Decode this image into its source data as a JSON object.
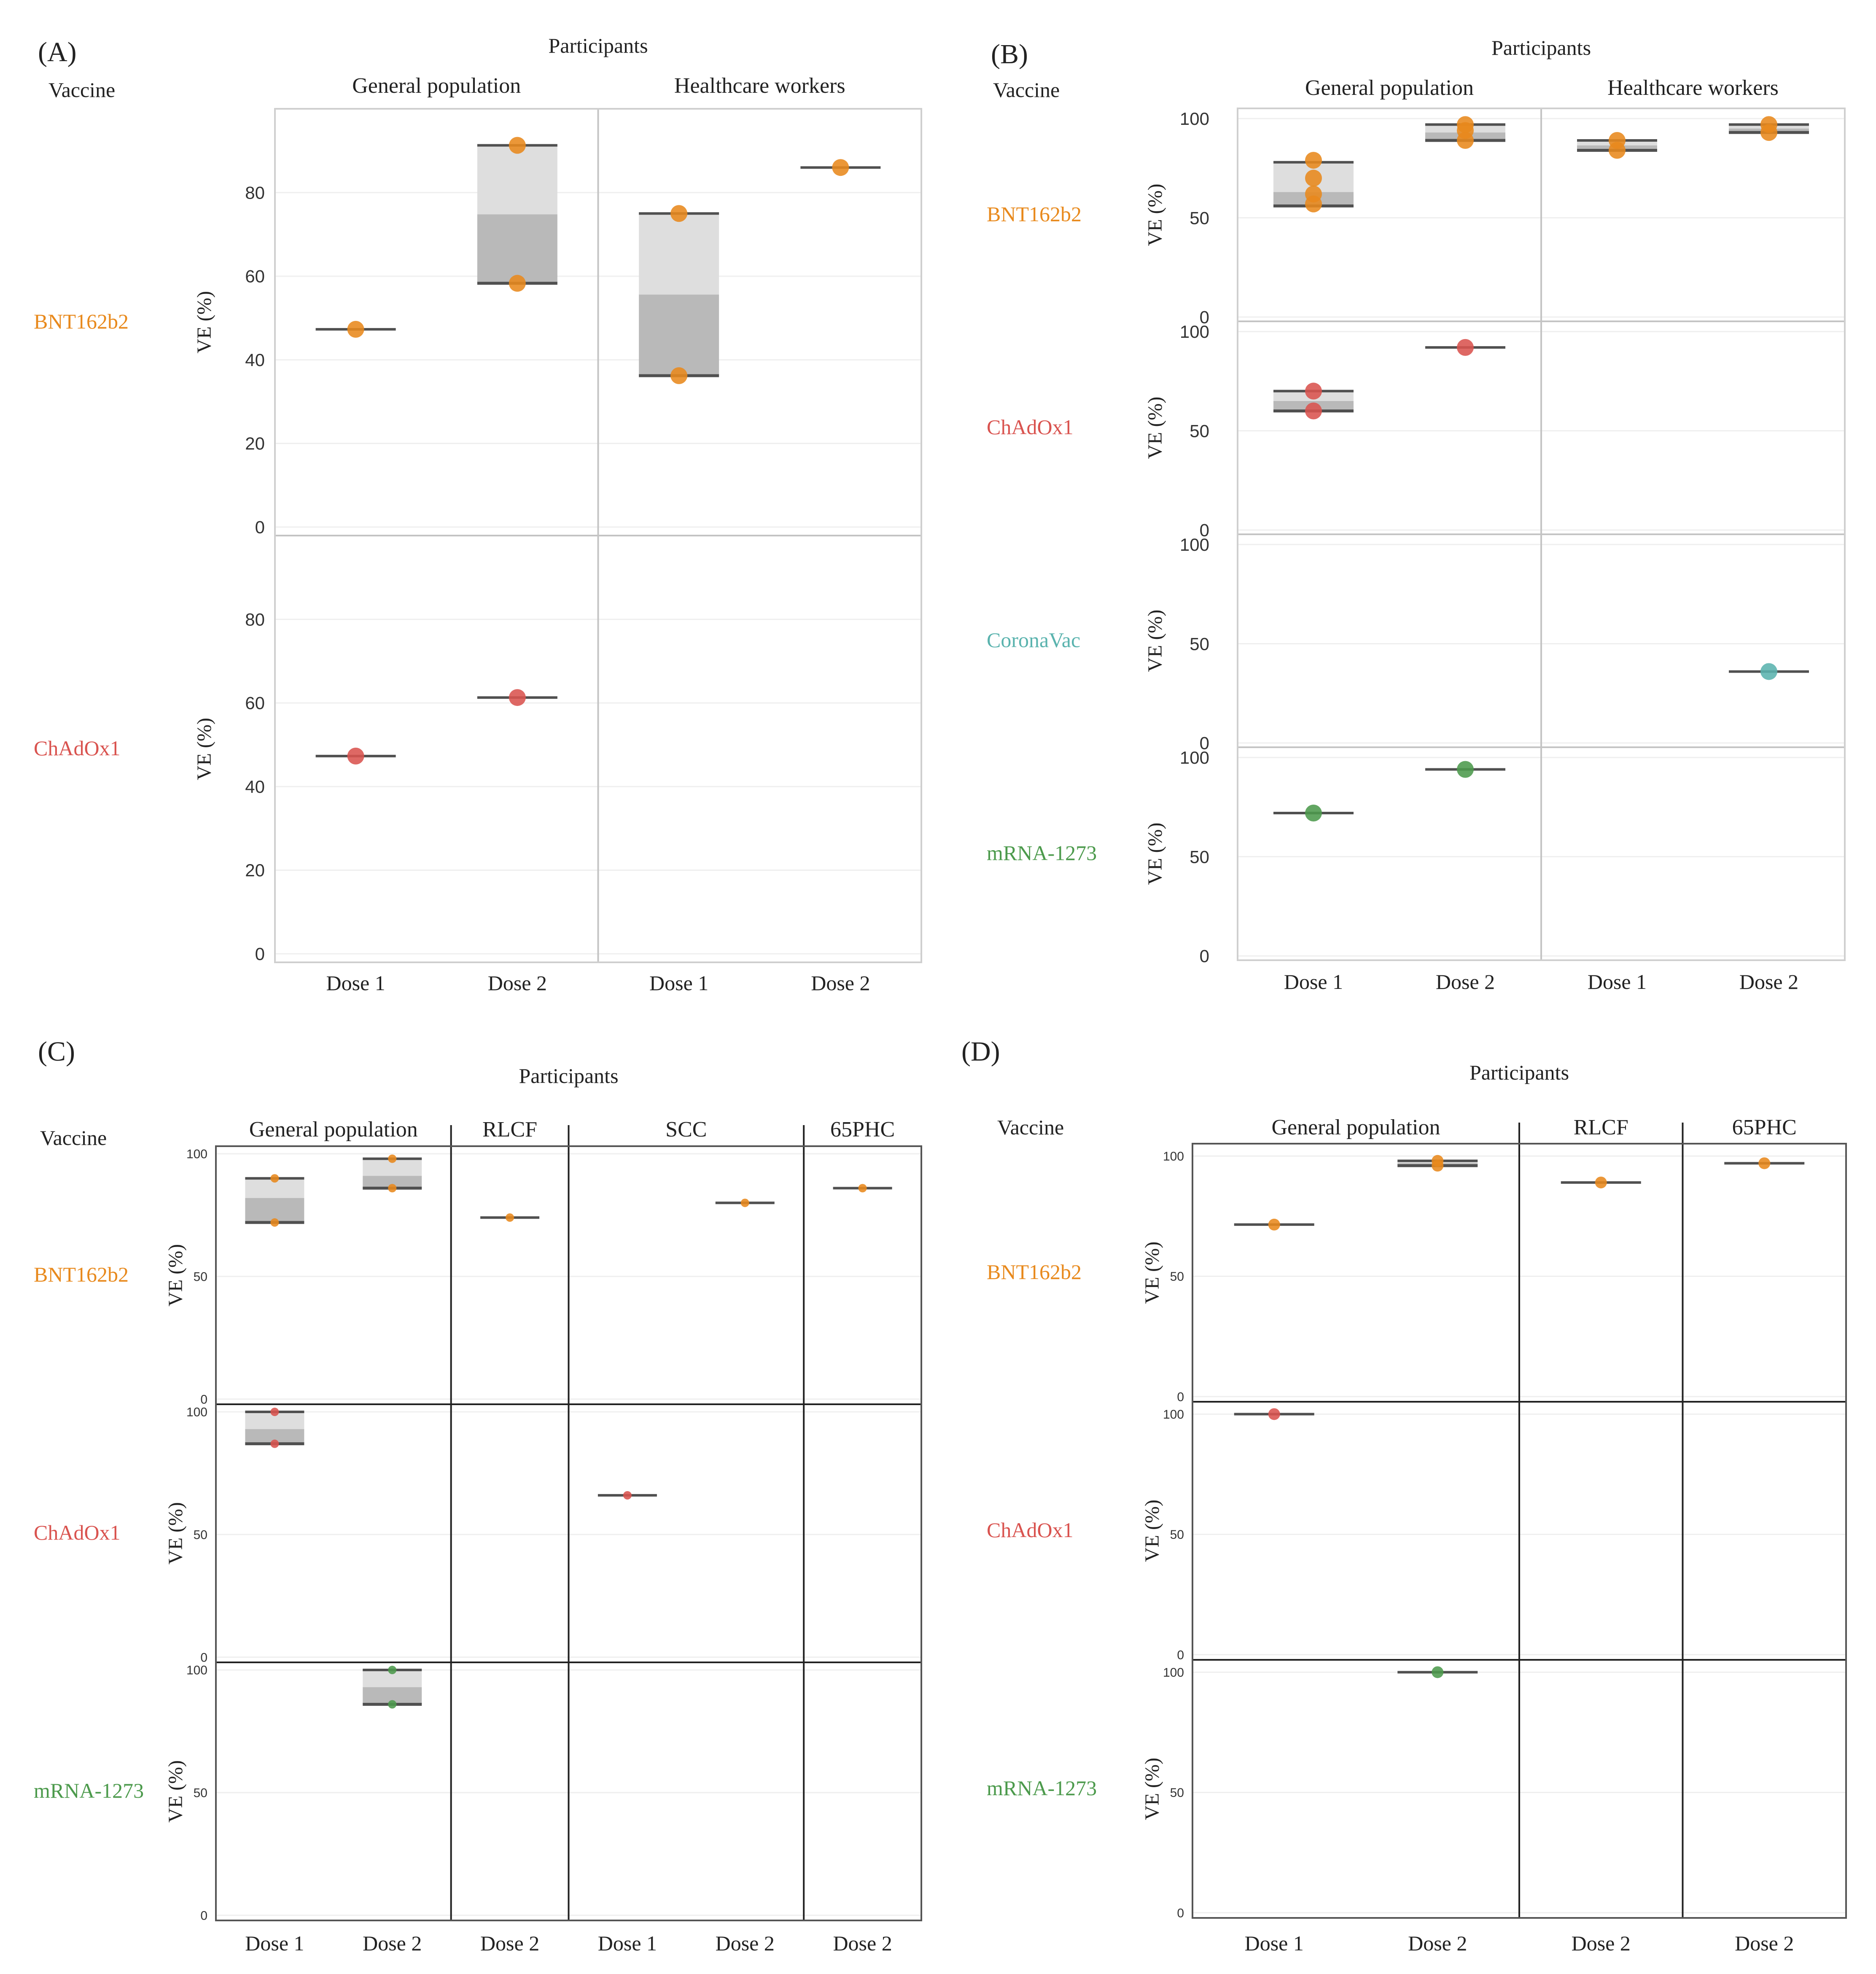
{
  "colors": {
    "BNT162b2": "#E8891C",
    "ChAdOx1": "#D9534F",
    "CoronaVac": "#5AB3AE",
    "mRNA-1273": "#4C9A4C",
    "box_light": "#DEDEDE",
    "box_dark": "#B9B9B9",
    "median_line": "#505050"
  },
  "chart_data": [
    {
      "panel": "(A)",
      "type": "boxplot",
      "title": "Participants",
      "row_header": "Vaccine",
      "ylabel": "VE (%)",
      "ylim": [
        0,
        98
      ],
      "yticks": [
        0,
        20,
        40,
        60,
        80
      ],
      "groups": [
        {
          "label": "General population",
          "doses": [
            "Dose 1",
            "Dose 2"
          ]
        },
        {
          "label": "Healthcare workers",
          "doses": [
            "Dose 1",
            "Dose 2"
          ]
        }
      ],
      "rows": [
        {
          "vaccine": "BNT162b2",
          "cells": [
            {
              "group": 0,
              "dose": 0,
              "box": [
                47.3,
                47.3,
                47.3
              ],
              "points": [
                47.3
              ]
            },
            {
              "group": 0,
              "dose": 1,
              "box": [
                58.3,
                74.8,
                91.3
              ],
              "points": [
                91.3,
                58.3
              ]
            },
            {
              "group": 1,
              "dose": 0,
              "box": [
                36.2,
                55.6,
                75
              ],
              "points": [
                75,
                36.2
              ]
            },
            {
              "group": 1,
              "dose": 1,
              "box": [
                86,
                86,
                86
              ],
              "points": [
                86
              ]
            }
          ]
        },
        {
          "vaccine": "ChAdOx1",
          "cells": [
            {
              "group": 0,
              "dose": 0,
              "box": [
                47.3,
                47.3,
                47.3
              ],
              "points": [
                47.3
              ]
            },
            {
              "group": 0,
              "dose": 1,
              "box": [
                61.3,
                61.3,
                61.3
              ],
              "points": [
                61.3
              ]
            }
          ]
        }
      ]
    },
    {
      "panel": "(B)",
      "type": "boxplot",
      "title": "Participants",
      "row_header": "Vaccine",
      "ylabel": "VE (%)",
      "ylim": [
        0,
        103
      ],
      "yticks": [
        0,
        50,
        100
      ],
      "groups": [
        {
          "label": "General population",
          "doses": [
            "Dose 1",
            "Dose 2"
          ]
        },
        {
          "label": "Healthcare workers",
          "doses": [
            "Dose 1",
            "Dose 2"
          ]
        }
      ],
      "rows": [
        {
          "vaccine": "BNT162b2",
          "cells": [
            {
              "group": 0,
              "dose": 0,
              "box": [
                56,
                63,
                78
              ],
              "points": [
                79,
                70,
                62,
                57
              ]
            },
            {
              "group": 0,
              "dose": 1,
              "box": [
                89,
                93,
                97
              ],
              "points": [
                97,
                94,
                89
              ]
            },
            {
              "group": 1,
              "dose": 0,
              "box": [
                84,
                86.5,
                89
              ],
              "points": [
                89,
                84
              ]
            },
            {
              "group": 1,
              "dose": 1,
              "box": [
                93,
                95,
                97
              ],
              "points": [
                97,
                93
              ]
            }
          ]
        },
        {
          "vaccine": "ChAdOx1",
          "cells": [
            {
              "group": 0,
              "dose": 0,
              "box": [
                60,
                65,
                70
              ],
              "points": [
                70,
                60
              ]
            },
            {
              "group": 0,
              "dose": 1,
              "box": [
                92,
                92,
                92
              ],
              "points": [
                92
              ]
            }
          ]
        },
        {
          "vaccine": "CoronaVac",
          "cells": [
            {
              "group": 1,
              "dose": 1,
              "box": [
                36,
                36,
                36
              ],
              "points": [
                36
              ]
            }
          ]
        },
        {
          "vaccine": "mRNA-1273",
          "cells": [
            {
              "group": 0,
              "dose": 0,
              "box": [
                72,
                72,
                72
              ],
              "points": [
                72
              ]
            },
            {
              "group": 0,
              "dose": 1,
              "box": [
                94,
                94,
                94
              ],
              "points": [
                94
              ]
            }
          ]
        }
      ]
    },
    {
      "panel": "(C)",
      "type": "boxplot",
      "title": "Participants",
      "row_header": "Vaccine",
      "ylabel": "VE (%)",
      "ylim": [
        0,
        101
      ],
      "yticks": [
        0,
        50,
        100
      ],
      "groups": [
        {
          "label": "General population",
          "doses": [
            "Dose 1",
            "Dose 2"
          ]
        },
        {
          "label": "RLCF",
          "doses": [
            "Dose 2"
          ]
        },
        {
          "label": "SCC",
          "doses": [
            "Dose 1",
            "Dose 2"
          ]
        },
        {
          "label": "65PHC",
          "doses": [
            "Dose 2"
          ]
        }
      ],
      "rows": [
        {
          "vaccine": "BNT162b2",
          "cells": [
            {
              "group": 0,
              "dose": 0,
              "box": [
                72,
                82,
                90
              ],
              "points": [
                90,
                72
              ]
            },
            {
              "group": 0,
              "dose": 1,
              "box": [
                86,
                91,
                98
              ],
              "points": [
                98,
                86
              ]
            },
            {
              "group": 1,
              "dose": 0,
              "box": [
                74,
                74,
                74
              ],
              "points": [
                74
              ]
            },
            {
              "group": 2,
              "dose": 1,
              "box": [
                80,
                80,
                80
              ],
              "points": [
                80
              ]
            },
            {
              "group": 3,
              "dose": 0,
              "box": [
                86,
                86,
                86
              ],
              "points": [
                86
              ]
            }
          ]
        },
        {
          "vaccine": "ChAdOx1",
          "cells": [
            {
              "group": 0,
              "dose": 0,
              "box": [
                87,
                93,
                100
              ],
              "points": [
                100,
                87
              ]
            },
            {
              "group": 2,
              "dose": 0,
              "box": [
                66,
                66,
                66
              ],
              "points": [
                66
              ]
            }
          ]
        },
        {
          "vaccine": "mRNA-1273",
          "cells": [
            {
              "group": 0,
              "dose": 1,
              "box": [
                86,
                93,
                100
              ],
              "points": [
                100,
                86
              ]
            }
          ]
        }
      ]
    },
    {
      "panel": "(D)",
      "type": "boxplot",
      "title": "Participants",
      "row_header": "Vaccine",
      "ylabel": "VE (%)",
      "ylim": [
        0,
        103
      ],
      "yticks": [
        0,
        50,
        100
      ],
      "groups": [
        {
          "label": "General population",
          "doses": [
            "Dose 1",
            "Dose 2"
          ]
        },
        {
          "label": "RLCF",
          "doses": [
            "Dose 2"
          ]
        },
        {
          "label": "65PHC",
          "doses": [
            "Dose 2"
          ]
        }
      ],
      "rows": [
        {
          "vaccine": "BNT162b2",
          "cells": [
            {
              "group": 0,
              "dose": 0,
              "box": [
                71.5,
                71.5,
                71.5
              ],
              "points": [
                71.5
              ]
            },
            {
              "group": 0,
              "dose": 1,
              "box": [
                96,
                97,
                98
              ],
              "points": [
                98,
                96
              ]
            },
            {
              "group": 1,
              "dose": 0,
              "box": [
                89,
                89,
                89
              ],
              "points": [
                89
              ]
            },
            {
              "group": 2,
              "dose": 0,
              "box": [
                97,
                97,
                97
              ],
              "points": [
                97
              ]
            }
          ]
        },
        {
          "vaccine": "ChAdOx1",
          "cells": [
            {
              "group": 0,
              "dose": 0,
              "box": [
                100,
                100,
                100
              ],
              "points": [
                100
              ]
            }
          ]
        },
        {
          "vaccine": "mRNA-1273",
          "cells": [
            {
              "group": 0,
              "dose": 1,
              "box": [
                100,
                100,
                100
              ],
              "points": [
                100
              ]
            }
          ]
        }
      ]
    }
  ]
}
